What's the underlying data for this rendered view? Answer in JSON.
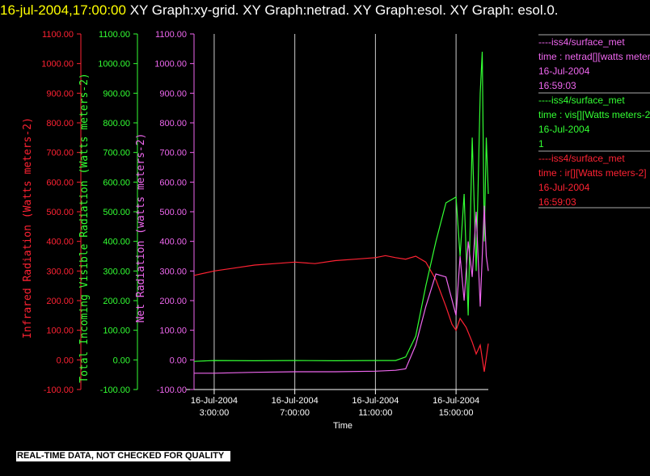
{
  "header": {
    "timestamp": "16-jul-2004,17:00:00",
    "title": "XY Graph:xy-grid.  XY Graph:netrad.  XY Graph:esol.  XY Graph:  esol.0."
  },
  "footer": {
    "notice": "REAL-TIME DATA, NOT CHECKED FOR QUALITY"
  },
  "colors": {
    "ir": "#ff2233",
    "vis": "#33ff33",
    "netrad": "#ee66ee",
    "grid": "#cccccc",
    "axis": "#ffffff"
  },
  "chart_data": {
    "type": "line",
    "xlabel": "Time",
    "x_ticks": [
      {
        "top": "16-Jul-2004",
        "bottom": "3:00:00",
        "hour": 3
      },
      {
        "top": "16-Jul-2004",
        "bottom": "7:00:00",
        "hour": 7
      },
      {
        "top": "16-Jul-2004",
        "bottom": "11:00:00",
        "hour": 11
      },
      {
        "top": "16-Jul-2004",
        "bottom": "15:00:00",
        "hour": 15
      }
    ],
    "xlim_hours": [
      2.0,
      16.6
    ],
    "grid": "vertical",
    "y_axes": [
      {
        "id": "ir",
        "label": "Infrared Radiation (Watts meters-2)",
        "ylim": [
          -100,
          1100
        ],
        "ticks": [
          "-100.00",
          "0.00",
          "100.00",
          "200.00",
          "300.00",
          "400.00",
          "500.00",
          "600.00",
          "700.00",
          "800.00",
          "900.00",
          "1000.00",
          "1100.00"
        ]
      },
      {
        "id": "vis",
        "label": "Total Incoming Visible Radiation (Watts meters-2)",
        "ylim": [
          -100,
          1100
        ],
        "ticks": [
          "-100.00",
          "0.00",
          "100.00",
          "200.00",
          "300.00",
          "400.00",
          "500.00",
          "600.00",
          "700.00",
          "800.00",
          "900.00",
          "1000.00",
          "1100.00"
        ]
      },
      {
        "id": "netrad",
        "label": "Net Radiation (watts meters-2)",
        "ylim": [
          -100,
          1100
        ],
        "ticks": [
          "-100.00",
          "0.00",
          "100.00",
          "200.00",
          "300.00",
          "400.00",
          "500.00",
          "600.00",
          "700.00",
          "800.00",
          "900.00",
          "1000.00",
          "1100.00"
        ]
      }
    ],
    "legend": [
      {
        "id": "netrad",
        "lines": [
          "----iss4/surface_met",
          "time : netrad[][watts meters-2]",
          "16-Jul-2004",
          "16:59:03"
        ]
      },
      {
        "id": "vis",
        "lines": [
          "----iss4/surface_met",
          "time : vis[][Watts meters-2]",
          "16-Jul-2004",
          "1"
        ]
      },
      {
        "id": "ir",
        "lines": [
          "----iss4/surface_met",
          "time : ir[][Watts meters-2]",
          "16-Jul-2004",
          "16:59:03"
        ]
      }
    ],
    "series": [
      {
        "id": "ir",
        "name": "ir",
        "points": [
          [
            2.0,
            285
          ],
          [
            3.0,
            300
          ],
          [
            4.0,
            310
          ],
          [
            5.0,
            320
          ],
          [
            6.0,
            325
          ],
          [
            7.0,
            330
          ],
          [
            8.0,
            325
          ],
          [
            9.0,
            335
          ],
          [
            10.0,
            340
          ],
          [
            11.0,
            345
          ],
          [
            11.5,
            352
          ],
          [
            12.0,
            345
          ],
          [
            12.5,
            340
          ],
          [
            13.0,
            350
          ],
          [
            13.5,
            330
          ],
          [
            14.0,
            270
          ],
          [
            14.5,
            180
          ],
          [
            14.8,
            120
          ],
          [
            15.0,
            100
          ],
          [
            15.2,
            140
          ],
          [
            15.5,
            110
          ],
          [
            15.8,
            60
          ],
          [
            16.0,
            20
          ],
          [
            16.2,
            50
          ],
          [
            16.4,
            -40
          ],
          [
            16.6,
            55
          ]
        ]
      },
      {
        "id": "vis",
        "name": "vis",
        "points": [
          [
            2.0,
            -5
          ],
          [
            3.0,
            -2
          ],
          [
            5.0,
            -3
          ],
          [
            7.0,
            -2
          ],
          [
            9.0,
            -3
          ],
          [
            11.0,
            -2
          ],
          [
            12.0,
            -2
          ],
          [
            12.5,
            10
          ],
          [
            13.0,
            80
          ],
          [
            13.5,
            250
          ],
          [
            14.0,
            400
          ],
          [
            14.5,
            530
          ],
          [
            15.0,
            550
          ],
          [
            15.2,
            350
          ],
          [
            15.4,
            560
          ],
          [
            15.6,
            150
          ],
          [
            15.8,
            750
          ],
          [
            16.0,
            300
          ],
          [
            16.2,
            900
          ],
          [
            16.3,
            1040
          ],
          [
            16.4,
            400
          ],
          [
            16.5,
            750
          ],
          [
            16.6,
            560
          ]
        ]
      },
      {
        "id": "netrad",
        "name": "netrad",
        "points": [
          [
            2.0,
            -45
          ],
          [
            3.0,
            -45
          ],
          [
            5.0,
            -42
          ],
          [
            7.0,
            -40
          ],
          [
            9.0,
            -40
          ],
          [
            11.0,
            -38
          ],
          [
            12.0,
            -35
          ],
          [
            12.5,
            -30
          ],
          [
            13.0,
            50
          ],
          [
            13.5,
            180
          ],
          [
            14.0,
            290
          ],
          [
            14.5,
            280
          ],
          [
            15.0,
            150
          ],
          [
            15.2,
            350
          ],
          [
            15.4,
            200
          ],
          [
            15.6,
            400
          ],
          [
            15.8,
            280
          ],
          [
            16.0,
            500
          ],
          [
            16.2,
            180
          ],
          [
            16.4,
            520
          ],
          [
            16.5,
            350
          ],
          [
            16.6,
            300
          ]
        ]
      }
    ]
  }
}
